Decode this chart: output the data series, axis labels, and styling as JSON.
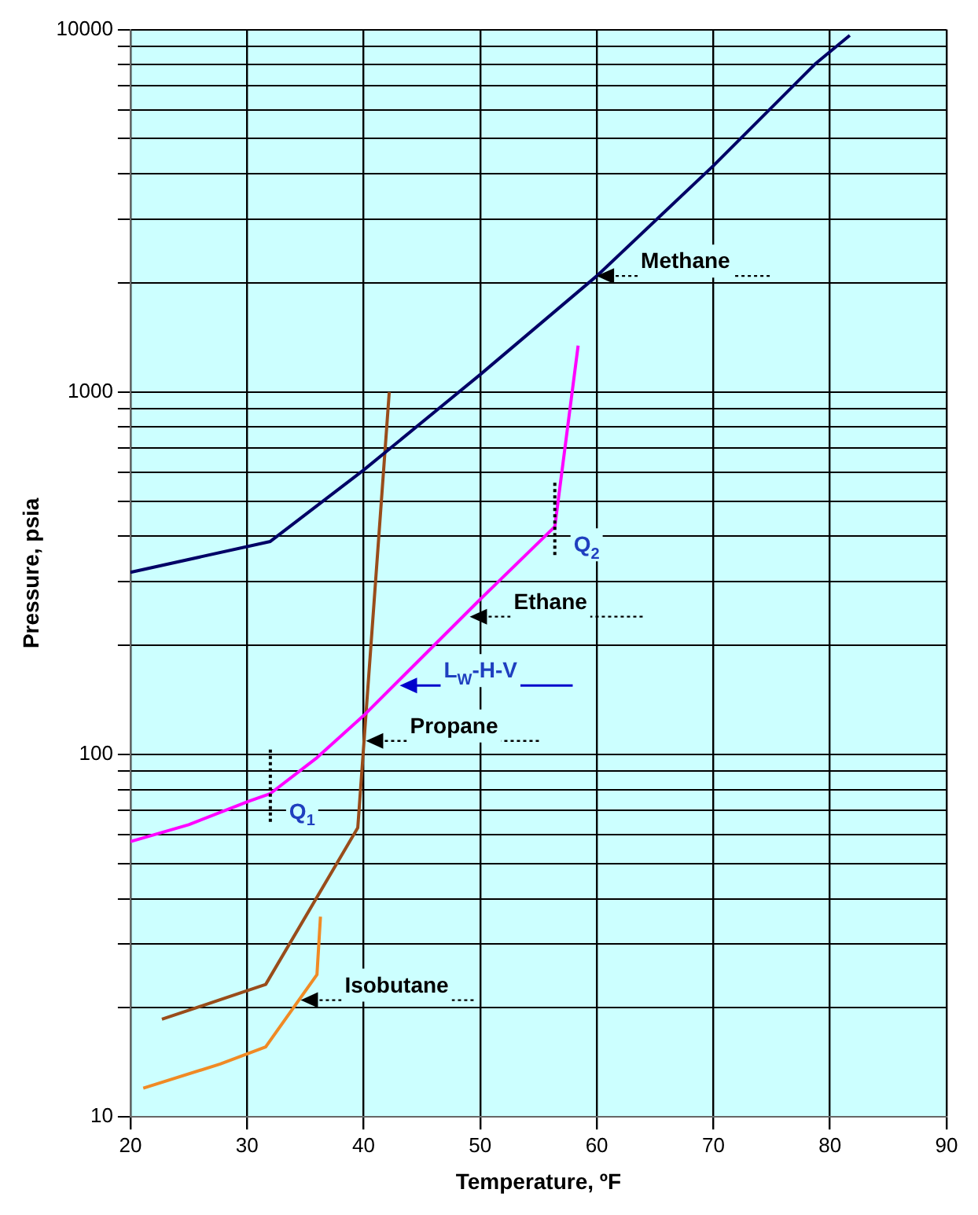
{
  "chart_data": {
    "type": "line",
    "xlabel": "Temperature, ºF",
    "ylabel": "Pressure, psia",
    "series": [
      {
        "color": "#000066",
        "x": [
          20,
          32,
          40,
          50,
          60,
          70,
          78.7,
          81.7
        ],
        "values": [
          318,
          387,
          609,
          1117,
          2090,
          4210,
          8020,
          9640
        ]
      },
      {
        "color": "#ff00ff",
        "x": [
          20,
          25,
          30,
          32,
          36,
          40,
          50,
          56.4,
          58.4
        ],
        "values": [
          57.5,
          64,
          74,
          78,
          98,
          128,
          268,
          425,
          1343
        ]
      },
      {
        "color": "#994c1a",
        "x": [
          22.7,
          31.6,
          39.5,
          42.2
        ],
        "values": [
          18.6,
          23.2,
          62.8,
          1000
        ]
      },
      {
        "color": "#f08a24",
        "x": [
          21.1,
          27.7,
          31.6,
          36,
          36.3
        ],
        "values": [
          12,
          14,
          15.6,
          24.7,
          35.7
        ]
      }
    ],
    "annotations": [
      {
        "text": "Methane",
        "x": 60,
        "y": 2090
      },
      {
        "text": "Ethane",
        "x": 49.1,
        "y": 240
      },
      {
        "text": "L$_{W}$-H-V",
        "x": 43.1,
        "y": 155
      },
      {
        "text": "Propane",
        "x": 40.2,
        "y": 109
      },
      {
        "text": "Isobutane",
        "x": 34.6,
        "y": 21
      },
      {
        "text": "Q$_{1}$",
        "x": 32,
        "y": 78
      },
      {
        "text": "Q$_{2}$",
        "x": 56.4,
        "y": 425
      }
    ],
    "xlim": [
      20,
      90
    ],
    "xticks": [
      20,
      30,
      40,
      50,
      60,
      70,
      80,
      90
    ],
    "ylim": [
      10,
      10000
    ],
    "log": true,
    "yticks": [
      10,
      {
        "value": 20,
        "label": null
      },
      {
        "value": 30,
        "label": null
      },
      {
        "value": 40,
        "label": null
      },
      {
        "value": 50,
        "label": null
      },
      {
        "value": 60,
        "label": null
      },
      {
        "value": 70,
        "label": null
      },
      {
        "value": 80,
        "label": null
      },
      {
        "value": 90,
        "label": null
      },
      100,
      {
        "value": 200,
        "label": null
      },
      {
        "value": 300,
        "label": null
      },
      {
        "value": 400,
        "label": null
      },
      {
        "value": 500,
        "label": null
      },
      {
        "value": 600,
        "label": null
      },
      {
        "value": 700,
        "label": null
      },
      {
        "value": 800,
        "label": null
      },
      {
        "value": 900,
        "label": null
      },
      1000,
      {
        "value": 2000,
        "label": null
      },
      {
        "value": 3000,
        "label": null
      },
      {
        "value": 4000,
        "label": null
      },
      {
        "value": 5000,
        "label": null
      },
      {
        "value": 6000,
        "label": null
      },
      {
        "value": 7000,
        "label": null
      },
      {
        "value": 8000,
        "label": null
      },
      {
        "value": 9000,
        "label": null
      },
      10000
    ],
    "grid": true,
    "legend": false,
    "marker": "none",
    "line_style": "solid"
  }
}
